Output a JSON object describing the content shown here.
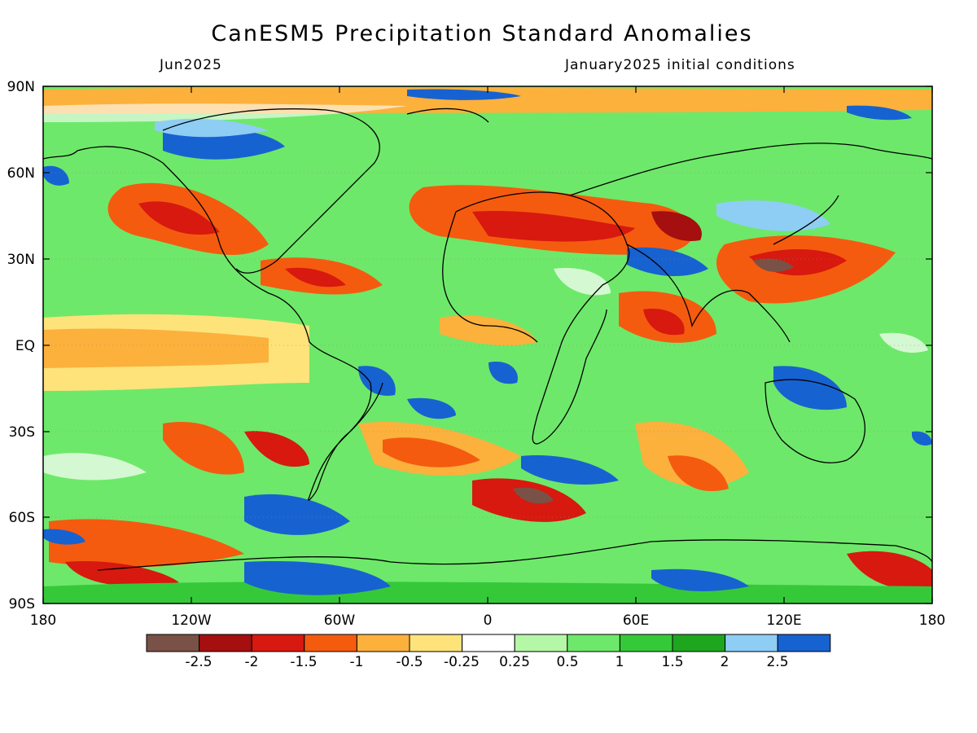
{
  "title": "CanESM5 Precipitation Standard Anomalies",
  "subtitle_left": "Jun2025",
  "subtitle_right": "January2025 initial conditions",
  "axes": {
    "lat_labels": [
      "90N",
      "60N",
      "30N",
      "EQ",
      "30S",
      "60S",
      "90S"
    ],
    "lon_labels": [
      "180",
      "120W",
      "60W",
      "0",
      "60E",
      "120E",
      "180"
    ]
  },
  "colorbar": {
    "labels": [
      "-2.5",
      "-2",
      "-1.5",
      "-1",
      "-0.5",
      "-0.25",
      "0.25",
      "0.5",
      "1",
      "1.5",
      "2",
      "2.5"
    ],
    "colors": [
      "#7a5146",
      "#a50f0f",
      "#d7190f",
      "#f45b0f",
      "#fbb13c",
      "#fde37a",
      "#ffffff",
      "#b5f7a7",
      "#6ee86a",
      "#35c93a",
      "#1ea61f",
      "#8ecdf4",
      "#1762d1"
    ]
  }
}
